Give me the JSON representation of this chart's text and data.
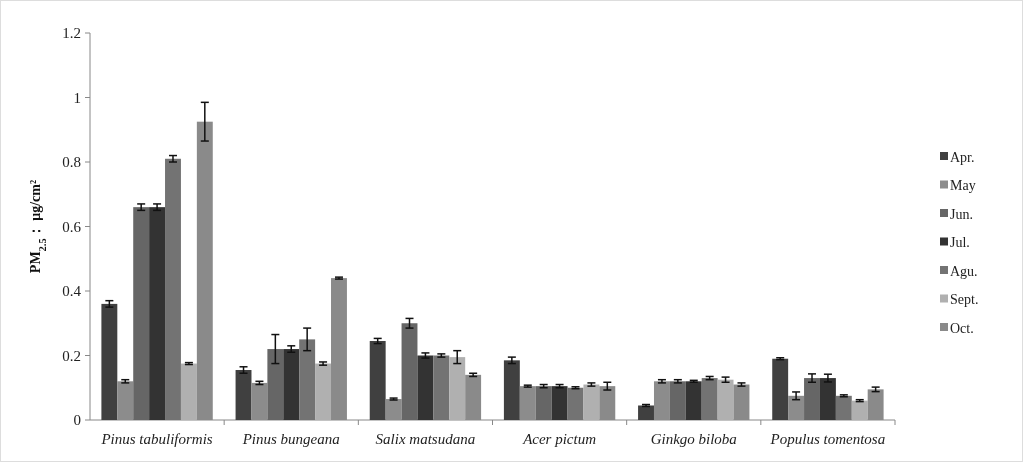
{
  "chart_data": {
    "type": "bar",
    "ylabel": "PM$_{2.5}$： μg/cm²",
    "categories": [
      "Pinus tabuliformis",
      "Pinus bungeana",
      "Salix matsudana",
      "Acer pictum",
      "Ginkgo biloba",
      "Populus tomentosa"
    ],
    "series": [
      {
        "name": "Apr.",
        "color": "#404040",
        "values": [
          0.36,
          0.155,
          0.245,
          0.185,
          0.045,
          0.19
        ],
        "errors": [
          0.01,
          0.01,
          0.008,
          0.01,
          0.003,
          0.003
        ]
      },
      {
        "name": "May",
        "color": "#8c8c8c",
        "values": [
          0.12,
          0.115,
          0.065,
          0.105,
          0.12,
          0.075
        ],
        "errors": [
          0.005,
          0.005,
          0.003,
          0.003,
          0.005,
          0.012
        ]
      },
      {
        "name": "Jun.",
        "color": "#666666",
        "values": [
          0.66,
          0.22,
          0.3,
          0.105,
          0.12,
          0.13
        ],
        "errors": [
          0.01,
          0.045,
          0.015,
          0.005,
          0.005,
          0.013
        ]
      },
      {
        "name": "Jul.",
        "color": "#333333",
        "values": [
          0.66,
          0.22,
          0.2,
          0.105,
          0.12,
          0.13
        ],
        "errors": [
          0.01,
          0.01,
          0.008,
          0.005,
          0.003,
          0.012
        ]
      },
      {
        "name": "Agu.",
        "color": "#737373",
        "values": [
          0.81,
          0.25,
          0.2,
          0.1,
          0.13,
          0.075
        ],
        "errors": [
          0.01,
          0.035,
          0.005,
          0.003,
          0.005,
          0.003
        ]
      },
      {
        "name": "Sept.",
        "color": "#b0b0b0",
        "values": [
          0.175,
          0.175,
          0.195,
          0.11,
          0.125,
          0.06
        ],
        "errors": [
          0.003,
          0.005,
          0.02,
          0.005,
          0.008,
          0.003
        ]
      },
      {
        "name": "Oct.",
        "color": "#8a8a8a",
        "values": [
          0.925,
          0.44,
          0.14,
          0.105,
          0.11,
          0.095
        ],
        "errors": [
          0.06,
          0.003,
          0.005,
          0.012,
          0.005,
          0.007
        ]
      }
    ],
    "ylim": [
      0,
      1.2
    ],
    "yticks": [
      0,
      0.2,
      0.4,
      0.6,
      0.8,
      1,
      1.2
    ],
    "legend": "right"
  }
}
